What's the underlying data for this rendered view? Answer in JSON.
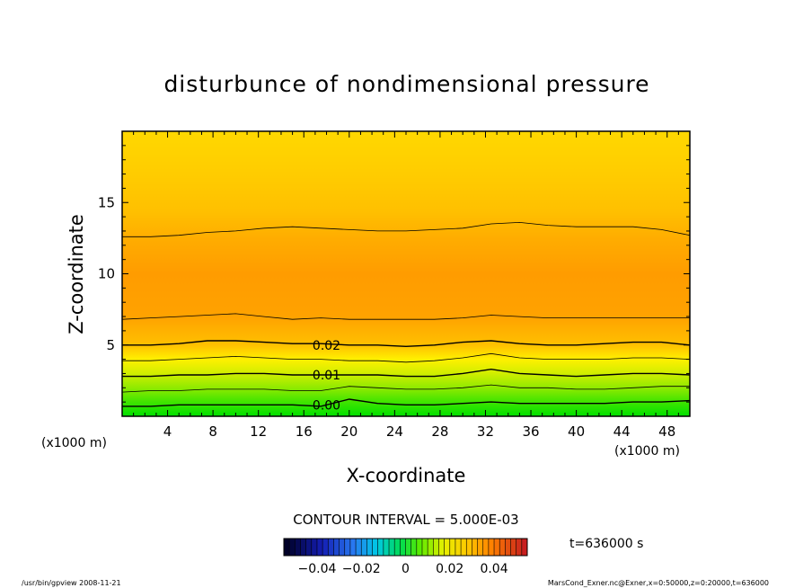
{
  "chart_data": {
    "type": "contour",
    "title": "disturbunce of nondimensional pressure",
    "xlabel": "X-coordinate",
    "ylabel": "Z-coordinate",
    "x_unit_label": "(x1000 m)",
    "y_unit_label": "(x1000 m)",
    "xlim": [
      0,
      50
    ],
    "ylim": [
      0,
      20
    ],
    "x_ticks": [
      "4",
      "8",
      "12",
      "16",
      "20",
      "24",
      "28",
      "32",
      "36",
      "40",
      "44",
      "48"
    ],
    "y_ticks": [
      "5",
      "10",
      "15"
    ],
    "contour_interval_text": "CONTOUR INTERVAL = 5.000E-03",
    "contour_interval": 0.005,
    "contour_labels": [
      {
        "text": "0.02",
        "x": 18,
        "z": 5.0
      },
      {
        "text": "0.01",
        "x": 18,
        "z": 2.9
      },
      {
        "text": "0.00",
        "x": 18,
        "z": 0.8
      }
    ],
    "contour_lines": [
      {
        "level": 0.0,
        "z": [
          0.7,
          0.7,
          0.8,
          0.8,
          0.8,
          0.8,
          0.8,
          0.7,
          1.2,
          0.9,
          0.8,
          0.8,
          0.9,
          1.0,
          0.9,
          0.9,
          0.9,
          0.9,
          1.0,
          1.0,
          1.1
        ]
      },
      {
        "level": 0.005,
        "z": [
          1.7,
          1.8,
          1.8,
          1.9,
          1.9,
          1.9,
          1.8,
          1.8,
          2.1,
          2.0,
          1.9,
          1.9,
          2.0,
          2.2,
          2.0,
          2.0,
          1.9,
          1.9,
          2.0,
          2.1,
          2.1
        ]
      },
      {
        "level": 0.01,
        "z": [
          2.8,
          2.8,
          2.9,
          2.9,
          3.0,
          3.0,
          2.9,
          2.9,
          2.9,
          2.9,
          2.8,
          2.8,
          3.0,
          3.3,
          3.0,
          2.9,
          2.8,
          2.9,
          3.0,
          3.0,
          2.9
        ]
      },
      {
        "level": 0.015,
        "z": [
          3.9,
          3.9,
          4.0,
          4.1,
          4.2,
          4.1,
          4.0,
          4.0,
          3.9,
          3.9,
          3.8,
          3.9,
          4.1,
          4.4,
          4.1,
          4.0,
          4.0,
          4.0,
          4.1,
          4.1,
          4.0
        ]
      },
      {
        "level": 0.02,
        "z": [
          5.0,
          5.0,
          5.1,
          5.3,
          5.3,
          5.2,
          5.1,
          5.1,
          5.0,
          5.0,
          4.9,
          5.0,
          5.2,
          5.3,
          5.1,
          5.0,
          5.0,
          5.1,
          5.2,
          5.2,
          5.0
        ]
      },
      {
        "level": 0.025,
        "z": [
          6.8,
          6.9,
          7.0,
          7.1,
          7.2,
          7.0,
          6.8,
          6.9,
          6.8,
          6.8,
          6.8,
          6.8,
          6.9,
          7.1,
          7.0,
          6.9,
          6.9,
          6.9,
          6.9,
          6.9,
          6.9
        ]
      },
      {
        "level": 0.025,
        "z": [
          12.6,
          12.6,
          12.7,
          12.9,
          13.0,
          13.2,
          13.3,
          13.2,
          13.1,
          13.0,
          13.0,
          13.1,
          13.2,
          13.5,
          13.6,
          13.4,
          13.3,
          13.3,
          13.3,
          13.1,
          12.7
        ]
      }
    ],
    "colorbar": {
      "ticks": [
        "−0.04",
        "−0.02",
        "0",
        "0.02",
        "0.04"
      ],
      "range": [
        -0.055,
        0.055
      ]
    },
    "time_label": "t=636000 s",
    "footer_left": "/usr/bin/gpview   2008-11-21",
    "footer_right": "MarsCond_Exner.nc@Exner,x=0:50000,z=0:20000,t=636000",
    "colors": {
      "fill_low": "#00e000",
      "fill_mid": "#ffe000",
      "fill_high": "#ff9c00",
      "contour": "#000000"
    }
  }
}
